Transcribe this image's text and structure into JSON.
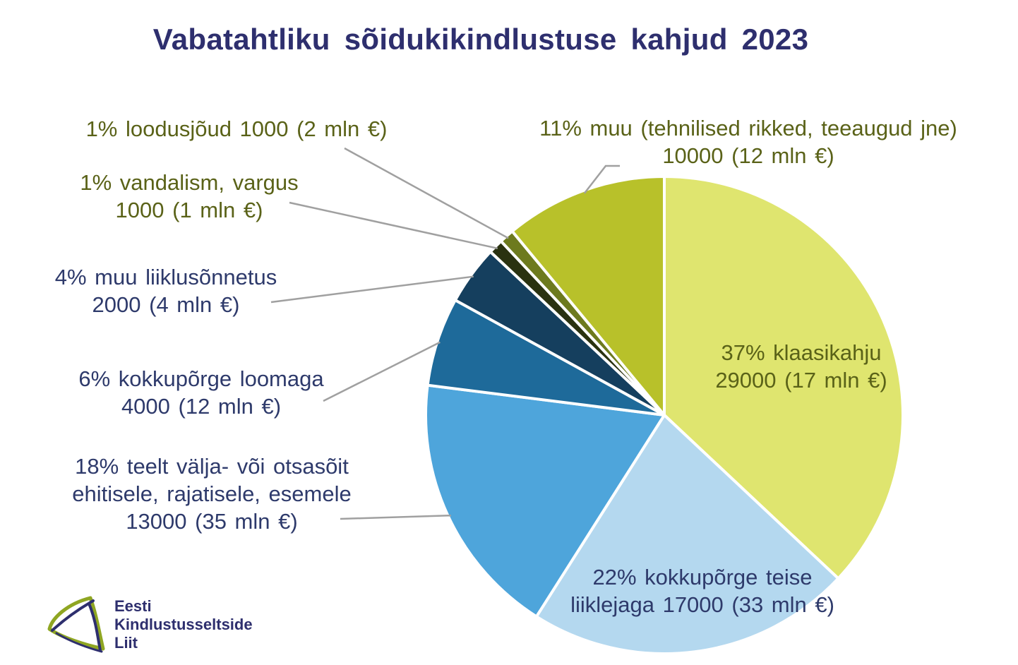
{
  "chart_data": {
    "type": "pie",
    "title": "Vabatahtliku sõidukikindlustuse kahjud 2023",
    "slices": [
      {
        "label_lines": [
          "37% klaasikahju",
          "29000 (17 mln €)"
        ],
        "percent": 37,
        "count": 29000,
        "amount_mln_eur": 17,
        "color": "#dfe56f"
      },
      {
        "label_lines": [
          "22% kokkupõrge teise",
          "liiklejaga  17000 (33 mln €)"
        ],
        "percent": 22,
        "count": 17000,
        "amount_mln_eur": 33,
        "color": "#b4d8ef"
      },
      {
        "label_lines": [
          "18% teelt välja- või otsasõit",
          "ehitisele, rajatisele, esemele",
          "13000 (35 mln €)"
        ],
        "percent": 18,
        "count": 13000,
        "amount_mln_eur": 35,
        "color": "#4ea5db"
      },
      {
        "label_lines": [
          "6% kokkupõrge loomaga",
          "4000 (12 mln €)"
        ],
        "percent": 6,
        "count": 4000,
        "amount_mln_eur": 12,
        "color": "#1e6a9a"
      },
      {
        "label_lines": [
          "4% muu liiklusõnnetus",
          "2000 (4 mln €)"
        ],
        "percent": 4,
        "count": 2000,
        "amount_mln_eur": 4,
        "color": "#153f5e"
      },
      {
        "label_lines": [
          "1% vandalism,  vargus",
          "1000 (1 mln €)"
        ],
        "percent": 1,
        "count": 1000,
        "amount_mln_eur": 1,
        "color": "#2a3210"
      },
      {
        "label_lines": [
          "1% loodusjõud  1000 (2 mln €)"
        ],
        "percent": 1,
        "count": 1000,
        "amount_mln_eur": 2,
        "color": "#6d7a1e"
      },
      {
        "label_lines": [
          "11% muu (tehnilised rikked, teeaugud jne)",
          "10000 (12 mln €)"
        ],
        "percent": 11,
        "count": 10000,
        "amount_mln_eur": 12,
        "color": "#b8c12a"
      }
    ],
    "legend": "none"
  },
  "logo": {
    "lines": [
      "Eesti",
      "Kindlustusseltside",
      "Liit"
    ],
    "colors": {
      "navy": "#2e2f6e",
      "green": "#8fa622"
    }
  }
}
